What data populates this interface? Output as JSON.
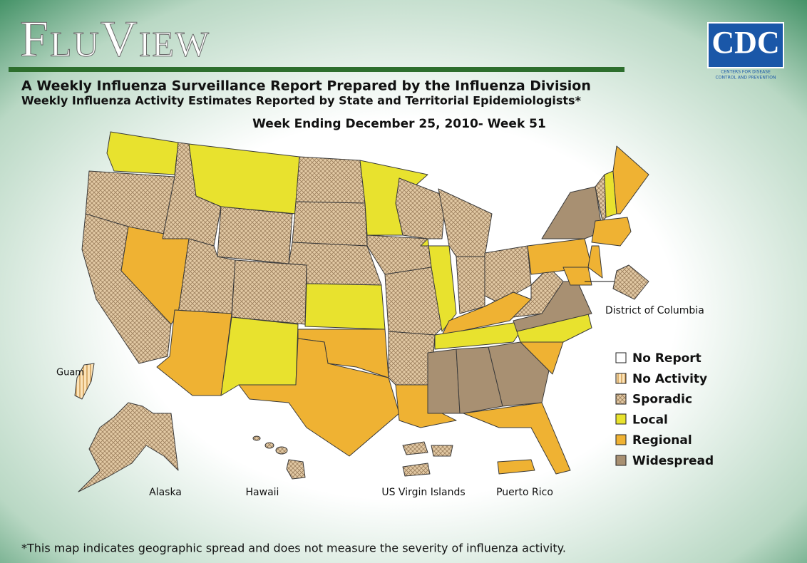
{
  "header": {
    "title": "FluView",
    "subtitle": "A Weekly Influenza Surveillance Report Prepared by the Influenza Division",
    "subtitle2": "Weekly Influenza Activity Estimates Reported by State and Territorial Epidemiologists*",
    "week": "Week Ending December 25, 2010- Week 51"
  },
  "logo": {
    "name": "CDC",
    "tagline1": "Centers for Disease",
    "tagline2": "Control and Prevention"
  },
  "legend": [
    "No Report",
    "No Activity",
    "Sporadic",
    "Local",
    "Regional",
    "Widespread"
  ],
  "labels": {
    "dc": "District of Columbia",
    "guam": "Guam",
    "alaska": "Alaska",
    "hawaii": "Hawaii",
    "usvi": "US Virgin Islands",
    "pr": "Puerto Rico"
  },
  "footnote": "*This map indicates geographic spread and does not measure the severity of influenza activity."
}
